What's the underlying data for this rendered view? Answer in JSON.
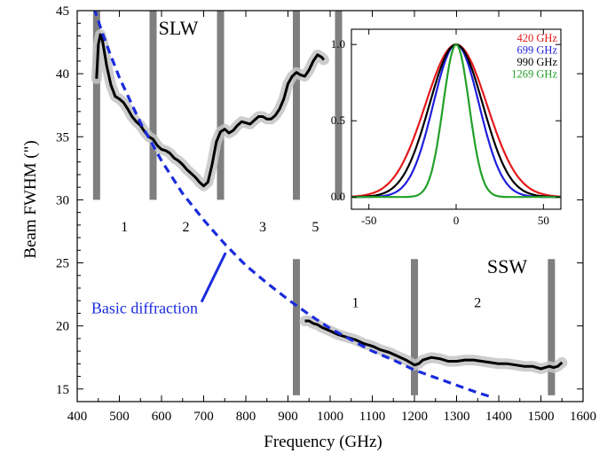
{
  "chart_data": {
    "type": "line",
    "title": "",
    "xlabel": "Frequency (GHz)",
    "ylabel": "Beam FWHM (\")",
    "xlim": [
      400,
      1600
    ],
    "ylim": [
      14,
      45
    ],
    "x_ticks": [
      400,
      500,
      600,
      700,
      800,
      900,
      1000,
      1100,
      1200,
      1300,
      1400,
      1500,
      1600
    ],
    "y_ticks": [
      15,
      20,
      25,
      30,
      35,
      40,
      45
    ],
    "grid": false,
    "colors": {
      "measured": "#000000",
      "uncertainty": "#c4c4c4",
      "diffraction": "#1a2bdc",
      "band_edge": "#7f7f7f"
    },
    "series": [
      {
        "name": "",
        "style": "solid",
        "x": [
          446,
          450,
          455,
          460,
          465,
          470,
          480,
          490,
          500,
          510,
          520,
          530,
          540,
          550,
          560,
          570,
          580,
          590,
          600,
          610,
          620,
          630,
          640,
          650,
          660,
          670,
          680,
          690,
          700,
          710,
          720,
          730,
          740,
          750,
          760,
          770,
          780,
          790,
          800,
          810,
          820,
          830,
          840,
          850,
          860,
          870,
          880,
          890,
          900,
          910,
          920,
          930,
          940,
          950,
          960,
          970,
          980,
          985
        ],
        "y": [
          39.6,
          42.3,
          43.1,
          42.6,
          41.6,
          40.6,
          39.1,
          38.2,
          38.0,
          37.7,
          37.2,
          36.6,
          36.2,
          35.9,
          35.4,
          35.0,
          34.8,
          34.3,
          34.0,
          33.9,
          33.7,
          33.3,
          33.1,
          32.8,
          32.4,
          32.1,
          31.8,
          31.4,
          31.1,
          31.4,
          32.8,
          34.6,
          35.4,
          35.6,
          35.3,
          35.5,
          35.9,
          36.2,
          36.1,
          36.0,
          36.3,
          36.6,
          36.6,
          36.4,
          36.4,
          36.7,
          37.2,
          38.0,
          39.2,
          39.8,
          40.1,
          39.9,
          39.8,
          40.3,
          41.0,
          41.5,
          41.3,
          41.1
        ]
      },
      {
        "name": "",
        "style": "solid",
        "x": [
          940,
          950,
          960,
          970,
          980,
          1000,
          1020,
          1040,
          1060,
          1080,
          1100,
          1120,
          1140,
          1160,
          1180,
          1190,
          1200,
          1210,
          1220,
          1240,
          1260,
          1280,
          1300,
          1320,
          1340,
          1360,
          1380,
          1400,
          1420,
          1440,
          1460,
          1480,
          1500,
          1510,
          1520,
          1530,
          1540,
          1550
        ],
        "y": [
          20.4,
          20.4,
          20.2,
          20.1,
          19.9,
          19.6,
          19.3,
          19.1,
          18.9,
          18.6,
          18.4,
          18.1,
          17.9,
          17.6,
          17.3,
          17.1,
          16.9,
          17.0,
          17.3,
          17.5,
          17.4,
          17.2,
          17.2,
          17.3,
          17.3,
          17.2,
          17.1,
          17.0,
          17.0,
          16.9,
          16.8,
          16.8,
          16.6,
          16.7,
          16.8,
          16.7,
          16.8,
          17.1
        ]
      },
      {
        "name": "Basic diffraction",
        "style": "dashed",
        "x": [
          440,
          460,
          480,
          500,
          550,
          600,
          650,
          700,
          750,
          800,
          850,
          900,
          950,
          1000,
          1050,
          1100,
          1150,
          1200,
          1250,
          1300,
          1350,
          1380
        ],
        "y": [
          45.2,
          43.2,
          41.4,
          39.7,
          36.1,
          33.1,
          30.5,
          28.4,
          26.5,
          24.8,
          23.4,
          22.1,
          20.9,
          19.8,
          18.9,
          18.0,
          17.3,
          16.5,
          15.9,
          15.3,
          14.7,
          14.4
        ]
      }
    ],
    "band_edges": [
      {
        "x": 446,
        "y_from": 30,
        "y_to": 45
      },
      {
        "x": 580,
        "y_from": 30,
        "y_to": 45
      },
      {
        "x": 740,
        "y_from": 30,
        "y_to": 45
      },
      {
        "x": 920,
        "y_from": 30,
        "y_to": 45
      },
      {
        "x": 1020,
        "y_from": 30,
        "y_to": 45
      },
      {
        "x": 920,
        "y_from": 14.5,
        "y_to": 25.3
      },
      {
        "x": 1200,
        "y_from": 14.5,
        "y_to": 25.3
      },
      {
        "x": 1525,
        "y_from": 14.5,
        "y_to": 25.3
      }
    ],
    "annotations": [
      {
        "text": "SLW",
        "x": 640,
        "y": 43.1
      },
      {
        "text": "SSW",
        "x": 1420,
        "y": 24.2
      },
      {
        "text": "1",
        "x": 512,
        "y": 27.5
      },
      {
        "text": "2",
        "x": 658,
        "y": 27.5
      },
      {
        "text": "3",
        "x": 840,
        "y": 27.5
      },
      {
        "text": "5",
        "x": 965,
        "y": 27.5
      },
      {
        "text": "1",
        "x": 1060,
        "y": 21.5
      },
      {
        "text": "2",
        "x": 1350,
        "y": 21.5
      },
      {
        "text": "Basic diffraction",
        "x": 560,
        "y": 21.0
      }
    ],
    "inset": {
      "type": "line",
      "xlim": [
        -60,
        60
      ],
      "ylim": [
        -0.08,
        1.1
      ],
      "x_ticks": [
        -50,
        0,
        50
      ],
      "y_ticks": [
        0.0,
        0.5,
        1.0
      ],
      "legend_position": "top-right",
      "series": [
        {
          "name": "420 GHz",
          "color": "#e41a1c",
          "fwhm": 41.5
        },
        {
          "name": "699 GHz",
          "color": "#1f1fdc",
          "fwhm": 31.0
        },
        {
          "name": "990 GHz",
          "color": "#000000",
          "fwhm": 36.0
        },
        {
          "name": "1269 GHz",
          "color": "#22a02a",
          "fwhm": 17.5
        }
      ]
    }
  }
}
